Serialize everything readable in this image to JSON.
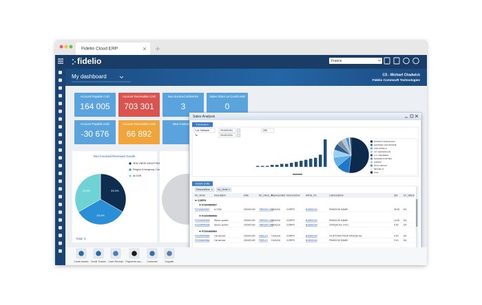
{
  "browser": {
    "tab_title": "Fidelio Cloud ERP"
  },
  "header": {
    "logo": "fidelio",
    "page_title": "My dashboard",
    "company_select": "France",
    "user": "CS - Michael Chadwick",
    "company": "Fidelio Commsoft Technologies"
  },
  "kpis": [
    {
      "label": "Account Payable CAD",
      "value": "164 005",
      "color": "#5ba3dd"
    },
    {
      "label": "Account Receivable CAD",
      "value": "703 301",
      "color": "#d9534f"
    },
    {
      "label": "Non invoiced deliveries",
      "value": "3",
      "color": "#5ba3dd"
    },
    {
      "label": "Sales Order on Credit Hold",
      "value": "0",
      "color": "#5ba3dd"
    },
    {
      "label": "Account Payable USD",
      "value": "-30 676",
      "color": "#5ba3dd"
    },
    {
      "label": "Account Receivable USD",
      "value": "66 892",
      "color": "#f0a43a"
    },
    {
      "label": "New Customers",
      "color": "#5ba3dd"
    }
  ],
  "pie_widget": {
    "type": "pie",
    "title": "Non Invoiced Received Goods",
    "categories": [
      "SEN VIBOE INDUSTRIAL CO. LTD",
      "Pelgrim Emergency Control Pervasive Industry",
      "ALGAR"
    ],
    "values": [
      33.3,
      33.3,
      33.3
    ],
    "value_labels": [
      "33.3%",
      "33.3%",
      "33.3%"
    ],
    "colors": [
      "#0f2d4f",
      "#2a8fd6",
      "#6fd3d6"
    ],
    "total": "Total: 3"
  },
  "sales_window": {
    "title": "Sales Analysis",
    "tab": "Information",
    "filter": "Lot: Network",
    "to_label": "To",
    "date_from": "2019/01/01",
    "date_to": "2019/12/31",
    "limit": "250",
    "bars": {
      "type": "bar",
      "values": [
        1,
        1,
        1,
        2,
        2,
        3,
        3,
        4,
        5,
        6,
        7,
        8,
        9,
        12,
        27
      ],
      "color": "#1f4e79"
    },
    "pie": {
      "type": "pie",
      "categories": [
        "PATRICK MCDONALD",
        "GEORGE LAFONTAINE",
        "JOE NOVELLI",
        "J.P. SANSFACON",
        "L.O. DEGREEN",
        "MAXIME FORTIER",
        "CORPO",
        "PAUL HENLIN",
        "MICHEL D.",
        "Autre"
      ],
      "values": [
        52,
        12,
        9,
        7,
        6,
        5,
        4,
        3,
        1,
        1
      ],
      "colors": [
        "#0d2a4c",
        "#1f77c8",
        "#5fb0e8",
        "#9bd0f2",
        "#2d5d8c",
        "#7f8fa3",
        "#b7c2cf",
        "#3f9ad8",
        "#dfe6ee",
        "#1a1a1a"
      ]
    }
  },
  "details": {
    "tab": "Details (ISB)",
    "group_tags": [
      "Desconcitour",
      "No_Vente"
    ],
    "columns": [
      "No_Vente",
      "Description",
      "Date",
      "No_Client_ID",
      "Representant",
      "Desconcitour",
      "Article_No",
      "LaDescription",
      "Qte",
      "Un_Valeur"
    ],
    "rows": [
      {
        "group": "CORPO"
      },
      {
        "group": "FCD04540507"
      },
      {
        "cells": [
          "FCD04540507",
          "A-YZW",
          "2019/01/03",
          "TIRE000-CAD",
          "CASLEU",
          "CORPO",
          "BJ0000104",
          "PINNOCHI SAMIE",
          "25.00",
          "EA"
        ]
      },
      {
        "group": "FCD04540506"
      },
      {
        "cells": [
          "FCD04540506",
          "Steve Laurten",
          "2019/01/03",
          "TIRE000-CAD",
          "CASLEU",
          "CORPO",
          "BJ0000104",
          "PINNOCHI SAMIE",
          "10.00",
          "EA"
        ]
      },
      {
        "cells": [
          "FCD04540506",
          "Steve Laurten",
          "2019/01/03",
          "TIRE000-CAD",
          "CASLEU",
          "CORPO",
          "BJ0000104",
          "CROQUOLE 3 IN 1",
          "5.00",
          "EA"
        ]
      },
      {
        "group": "FCD04540564"
      },
      {
        "cells": [
          "FCD04540564",
          "Cal service",
          "2019/01/03",
          "FIDELIO",
          "CASLEU",
          "CORPO",
          "BJ0000104",
          "24 JETONS POUR CROQUOLE",
          "4.00",
          "EA"
        ]
      },
      {
        "cells": [
          "FCD04540564",
          "Cal service",
          "2019/01/03",
          "FIDELIO",
          "CASLEU",
          "CORPO",
          "BJ0000104",
          "PINNOCHI SAMIE",
          "2.00",
          "EA"
        ]
      }
    ]
  },
  "shortcuts": [
    "Credit tracker",
    "Credit Tracker",
    "Cash Receipt",
    "Payments acc...",
    "Customer",
    "Supplier"
  ]
}
